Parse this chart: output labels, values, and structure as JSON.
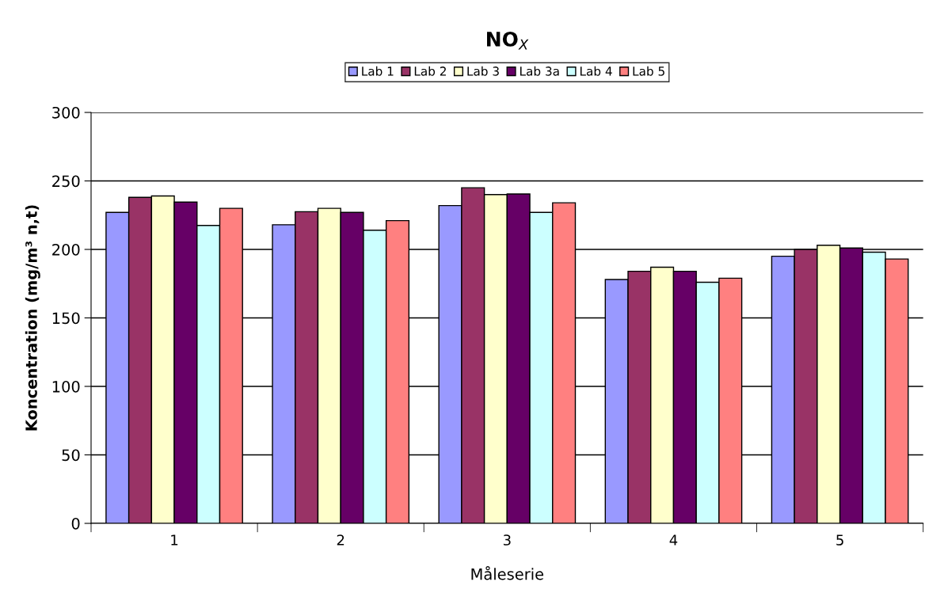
{
  "chart_data": {
    "type": "bar",
    "title": "NO$_{X}$",
    "xlabel": "Måleserie",
    "ylabel": "Koncentration (mg/m³ n,t)",
    "categories": [
      "1",
      "2",
      "3",
      "4",
      "5"
    ],
    "series": [
      {
        "name": "Lab 1",
        "color": "#9999ff",
        "values": [
          227,
          218,
          232,
          178,
          195
        ]
      },
      {
        "name": "Lab 2",
        "color": "#993366",
        "values": [
          238,
          227.5,
          245,
          184,
          200
        ]
      },
      {
        "name": "Lab 3",
        "color": "#ffffcc",
        "values": [
          239,
          230,
          240,
          187,
          203
        ]
      },
      {
        "name": "Lab 3a",
        "color": "#660066",
        "values": [
          234.5,
          227,
          240.5,
          184,
          201
        ]
      },
      {
        "name": "Lab 4",
        "color": "#ccffff",
        "values": [
          217.5,
          214,
          227,
          176,
          198
        ]
      },
      {
        "name": "Lab 5",
        "color": "#ff8080",
        "values": [
          230,
          221,
          234,
          179,
          193
        ]
      }
    ],
    "ylim": [
      0,
      300
    ],
    "yticks": [
      0,
      50,
      100,
      150,
      200,
      250,
      300
    ],
    "grid": "y",
    "legend": "top"
  }
}
